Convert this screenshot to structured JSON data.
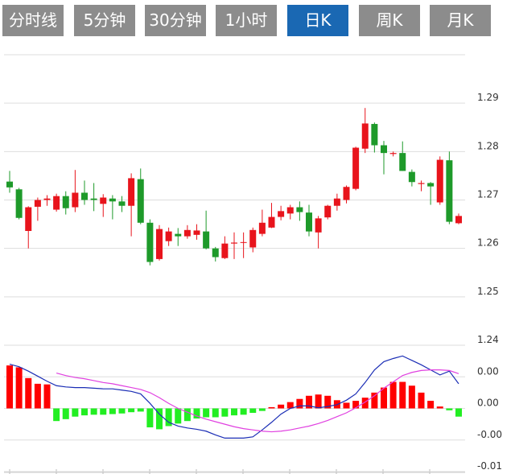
{
  "tabs": [
    "分时线",
    "5分钟",
    "30分钟",
    "1小时",
    "日K",
    "周K",
    "月K"
  ],
  "active_tab": 4,
  "chart_data": [
    {
      "type": "candlestick",
      "up_color": "#e8141c",
      "down_color": "#1e9a2a",
      "ylim": [
        1.24,
        1.3
      ],
      "yticks": [
        1.24,
        1.25,
        1.26,
        1.27,
        1.28,
        1.29
      ],
      "grid": true,
      "open": [
        1.2738,
        1.2722,
        1.2636,
        1.2686,
        1.27,
        1.268,
        1.2708,
        1.2685,
        1.2715,
        1.2703,
        1.2692,
        1.2703,
        1.2697,
        1.2688,
        1.2743,
        1.2653,
        1.2578,
        1.2615,
        1.263,
        1.2625,
        1.2628,
        1.2635,
        1.26,
        1.258,
        1.261,
        1.2612,
        1.2602,
        1.263,
        1.2643,
        1.2665,
        1.2672,
        1.2685,
        1.2674,
        1.2633,
        1.2664,
        1.2688,
        1.27,
        1.2723,
        1.2806,
        1.2857,
        1.2813,
        1.2795,
        1.2797,
        1.2758,
        1.2733,
        1.2735,
        1.2695,
        1.2782,
        1.2652
      ],
      "high": [
        1.276,
        1.2725,
        1.2687,
        1.2705,
        1.271,
        1.2713,
        1.2718,
        1.2762,
        1.274,
        1.2735,
        1.2712,
        1.271,
        1.2708,
        1.2755,
        1.2765,
        1.266,
        1.2648,
        1.2643,
        1.2642,
        1.2648,
        1.265,
        1.2678,
        1.2603,
        1.2625,
        1.2633,
        1.2633,
        1.2643,
        1.268,
        1.2694,
        1.2688,
        1.269,
        1.2697,
        1.269,
        1.2667,
        1.269,
        1.2713,
        1.273,
        1.281,
        1.289,
        1.286,
        1.2822,
        1.28,
        1.2821,
        1.2763,
        1.274,
        1.2737,
        1.279,
        1.28,
        1.2672
      ],
      "low": [
        1.2715,
        1.266,
        1.26,
        1.2657,
        1.2688,
        1.2676,
        1.267,
        1.2675,
        1.269,
        1.2677,
        1.2665,
        1.266,
        1.2675,
        1.2625,
        1.265,
        1.2565,
        1.2575,
        1.2605,
        1.2605,
        1.262,
        1.2618,
        1.2598,
        1.2573,
        1.2578,
        1.2578,
        1.258,
        1.2592,
        1.2625,
        1.2642,
        1.2658,
        1.266,
        1.2657,
        1.2625,
        1.26,
        1.266,
        1.2678,
        1.2693,
        1.272,
        1.2797,
        1.2798,
        1.2753,
        1.279,
        1.276,
        1.2728,
        1.2718,
        1.269,
        1.269,
        1.265,
        1.265
      ],
      "close": [
        1.2726,
        1.2663,
        1.2685,
        1.27,
        1.2703,
        1.2708,
        1.2683,
        1.2715,
        1.27,
        1.27,
        1.2705,
        1.2697,
        1.2688,
        1.2745,
        1.2653,
        1.2572,
        1.264,
        1.2635,
        1.2625,
        1.2638,
        1.2637,
        1.26,
        1.2582,
        1.261,
        1.2612,
        1.2613,
        1.2638,
        1.2653,
        1.2665,
        1.2677,
        1.2685,
        1.2675,
        1.2635,
        1.2662,
        1.2688,
        1.2703,
        1.2727,
        1.2808,
        1.2858,
        1.2813,
        1.2797,
        1.2797,
        1.276,
        1.2737,
        1.2735,
        1.2728,
        1.2783,
        1.2655,
        1.2667
      ]
    },
    {
      "type": "macd",
      "ylim": [
        -0.01,
        0.01
      ],
      "yticks": [
        {
          "value": 0.005,
          "label": "0.00"
        },
        {
          "value": 0,
          "label": "0.00"
        },
        {
          "value": -0.005,
          "label": "-0.00"
        },
        {
          "value": -0.01,
          "label": "-0.01"
        }
      ],
      "up_color": "#ff0000",
      "down_color": "#22ee22",
      "histogram": [
        0.0068,
        0.0065,
        0.0048,
        0.0039,
        0.0038,
        -0.002,
        -0.0017,
        -0.0013,
        -0.0011,
        -0.001,
        -0.001,
        -0.0009,
        -0.0008,
        -0.0006,
        -0.0005,
        -0.003,
        -0.0033,
        -0.0028,
        -0.0024,
        -0.002,
        -0.0016,
        -0.0014,
        -0.0014,
        -0.0013,
        -0.0011,
        -0.001,
        -0.0007,
        -0.0004,
        0.0002,
        0.0006,
        0.001,
        0.0015,
        0.002,
        0.0022,
        0.002,
        0.0013,
        0.0009,
        0.0012,
        0.0017,
        0.0025,
        0.0033,
        0.0042,
        0.0042,
        0.0036,
        0.0025,
        0.0012,
        0.0003,
        -0.0003,
        -0.0013
      ],
      "series": [
        {
          "color": "#1a2db5",
          "values": [
            0.007,
            0.0066,
            0.0059,
            0.0051,
            0.0043,
            0.0036,
            0.0034,
            0.0033,
            0.0033,
            0.0032,
            0.0031,
            0.0031,
            0.0029,
            0.0027,
            0.0023,
            0.0008,
            -0.0009,
            -0.0022,
            -0.0028,
            -0.0031,
            -0.0033,
            -0.0036,
            -0.0042,
            -0.0047,
            -0.0047,
            -0.0047,
            -0.0045,
            -0.0034,
            -0.0022,
            -0.0009,
            0,
            0.0004,
            0.0004,
            0.0001,
            0.0003,
            0.0006,
            0.0013,
            0.0023,
            0.0041,
            0.0061,
            0.0074,
            0.0079,
            0.0083,
            0.0076,
            0.0069,
            0.0061,
            0.0053,
            0.0059,
            0.0039
          ]
        },
        {
          "color": "#e040e0",
          "values": [
            null,
            null,
            null,
            null,
            null,
            0.0056,
            0.0052,
            0.0049,
            0.0047,
            0.0044,
            0.0041,
            0.0039,
            0.0036,
            0.0033,
            0.003,
            0.0025,
            0.0017,
            0.0008,
            0,
            -0.0006,
            -0.0012,
            -0.0017,
            -0.0021,
            -0.0025,
            -0.0029,
            -0.0032,
            -0.0034,
            -0.0036,
            -0.0037,
            -0.0036,
            -0.0034,
            -0.0031,
            -0.0028,
            -0.0024,
            -0.0019,
            -0.0013,
            -0.0007,
            0.0001,
            0.001,
            0.002,
            0.0032,
            0.0042,
            0.0052,
            0.0057,
            0.006,
            0.0061,
            0.0061,
            0.006,
            0.0055
          ]
        }
      ]
    }
  ]
}
